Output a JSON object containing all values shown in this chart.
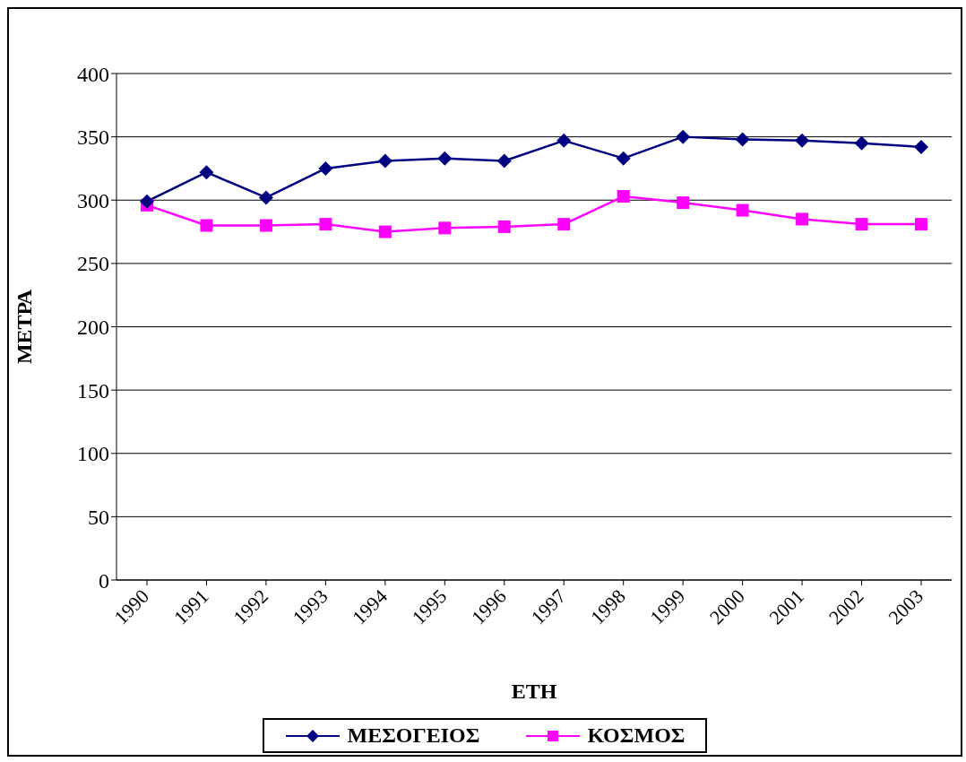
{
  "chart_data": {
    "type": "line",
    "xlabel": "ΕΤΗ",
    "ylabel": "ΜΕΤΡΑ",
    "categories": [
      "1990",
      "1991",
      "1992",
      "1993",
      "1994",
      "1995",
      "1996",
      "1997",
      "1998",
      "1999",
      "2000",
      "2001",
      "2002",
      "2003"
    ],
    "series": [
      {
        "name": "ΜΕΣΟΓΕΙΟΣ",
        "color": "#000080",
        "marker": "diamond",
        "values": [
          299,
          322,
          302,
          325,
          331,
          333,
          331,
          347,
          333,
          350,
          348,
          347,
          345,
          342
        ]
      },
      {
        "name": "ΚΟΣΜΟΣ",
        "color": "#ff00ff",
        "marker": "square",
        "values": [
          296,
          280,
          280,
          281,
          275,
          278,
          279,
          281,
          303,
          298,
          292,
          285,
          281,
          281
        ]
      }
    ],
    "ylim": [
      0,
      400
    ],
    "yticks": [
      0,
      50,
      100,
      150,
      200,
      250,
      300,
      350,
      400
    ],
    "grid": "y",
    "legend": "bottom",
    "line_style": "solid"
  }
}
